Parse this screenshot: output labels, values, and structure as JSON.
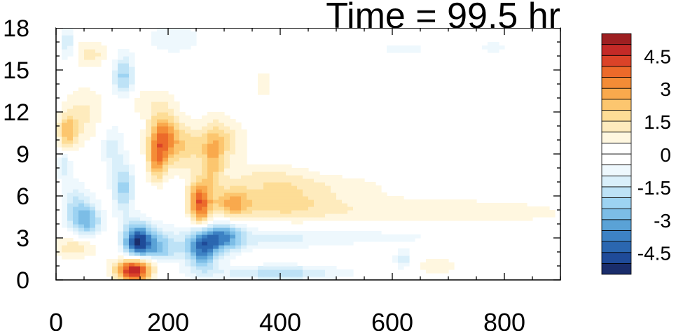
{
  "chart_data": {
    "type": "heatmap",
    "title": "Time = 99.5 hr",
    "xlabel": "",
    "ylabel": "",
    "xlim": [
      0,
      900
    ],
    "ylim": [
      0,
      18
    ],
    "x_ticks": [
      0,
      200,
      400,
      600,
      800
    ],
    "x_tick_labels": [
      "0",
      "200",
      "400",
      "600",
      "800"
    ],
    "y_ticks": [
      0,
      3,
      6,
      9,
      12,
      15,
      18
    ],
    "y_tick_labels": [
      "0",
      "3",
      "6",
      "9",
      "12",
      "15",
      "18"
    ],
    "colorbar": {
      "levels": [
        -5.5,
        -5,
        -4.5,
        -4,
        -3.5,
        -3,
        -2.5,
        -2,
        -1.5,
        -1,
        -0.5,
        0,
        0.5,
        1,
        1.5,
        2,
        2.5,
        3,
        3.5,
        4,
        4.5,
        5,
        5.5
      ],
      "colors": [
        "#1a2d6b",
        "#1f4b99",
        "#2b67b0",
        "#3d82c4",
        "#5aa2d6",
        "#7cbde6",
        "#9dd3f2",
        "#bde2f6",
        "#d9effa",
        "#eef8fd",
        "#ffffff",
        "#ffffff",
        "#fff7e0",
        "#feebbd",
        "#fddd96",
        "#fcc66f",
        "#f9a94d",
        "#f48c36",
        "#ec6a2a",
        "#db4328",
        "#c42a27",
        "#9e1f21"
      ],
      "tick_labels": [
        "4.5",
        "3",
        "1.5",
        "0",
        "-1.5",
        "-3",
        "-4.5"
      ],
      "tick_values": [
        4.5,
        3,
        1.5,
        0,
        -1.5,
        -3,
        -4.5
      ]
    },
    "field_features": [
      {
        "x": 140,
        "y": 0.6,
        "sx": 22,
        "sy": 0.6,
        "amp": 4.8
      },
      {
        "x": 165,
        "y": 1.2,
        "sx": 35,
        "sy": 0.5,
        "amp": 2.0
      },
      {
        "x": 145,
        "y": 2.8,
        "sx": 18,
        "sy": 0.9,
        "amp": -4.6
      },
      {
        "x": 185,
        "y": 2.0,
        "sx": 25,
        "sy": 1.1,
        "amp": -2.8
      },
      {
        "x": 260,
        "y": 2.5,
        "sx": 20,
        "sy": 1.2,
        "amp": -4.0
      },
      {
        "x": 300,
        "y": 3.1,
        "sx": 25,
        "sy": 0.8,
        "amp": -2.8
      },
      {
        "x": 255,
        "y": 5.8,
        "sx": 14,
        "sy": 1.0,
        "amp": 3.2
      },
      {
        "x": 260,
        "y": 4.2,
        "sx": 14,
        "sy": 0.9,
        "amp": 2.2
      },
      {
        "x": 315,
        "y": 5.5,
        "sx": 22,
        "sy": 0.8,
        "amp": 2.0
      },
      {
        "x": 280,
        "y": 8.5,
        "sx": 14,
        "sy": 1.6,
        "amp": 1.8
      },
      {
        "x": 190,
        "y": 10.3,
        "sx": 18,
        "sy": 1.2,
        "amp": 3.2
      },
      {
        "x": 180,
        "y": 8.4,
        "sx": 12,
        "sy": 1.0,
        "amp": 2.4
      },
      {
        "x": 230,
        "y": 9.5,
        "sx": 25,
        "sy": 1.2,
        "amp": 1.7
      },
      {
        "x": 300,
        "y": 10.0,
        "sx": 28,
        "sy": 1.2,
        "amp": 1.4
      },
      {
        "x": 20,
        "y": 10.5,
        "sx": 12,
        "sy": 1.0,
        "amp": 2.2
      },
      {
        "x": 50,
        "y": 11.8,
        "sx": 25,
        "sy": 1.5,
        "amp": 1.1
      },
      {
        "x": 35,
        "y": 5.0,
        "sx": 18,
        "sy": 1.3,
        "amp": -1.8
      },
      {
        "x": 60,
        "y": 4.2,
        "sx": 16,
        "sy": 0.9,
        "amp": -2.2
      },
      {
        "x": 120,
        "y": 6.5,
        "sx": 14,
        "sy": 1.3,
        "amp": -2.2
      },
      {
        "x": 35,
        "y": 2.4,
        "sx": 28,
        "sy": 0.6,
        "amp": 1.6
      },
      {
        "x": 15,
        "y": 8.3,
        "sx": 10,
        "sy": 0.8,
        "amp": -1.5
      },
      {
        "x": 120,
        "y": 14.5,
        "sx": 14,
        "sy": 1.2,
        "amp": -2.2
      },
      {
        "x": 20,
        "y": 16.8,
        "sx": 10,
        "sy": 1.0,
        "amp": -1.5
      },
      {
        "x": 60,
        "y": 16.2,
        "sx": 25,
        "sy": 0.7,
        "amp": 1.2
      },
      {
        "x": 210,
        "y": 17.2,
        "sx": 40,
        "sy": 0.8,
        "amp": -0.9
      },
      {
        "x": 160,
        "y": 12.8,
        "sx": 40,
        "sy": 0.8,
        "amp": 0.8
      },
      {
        "x": 100,
        "y": 9.5,
        "sx": 15,
        "sy": 1.2,
        "amp": -1.2
      },
      {
        "x": 400,
        "y": 5.5,
        "sx": 70,
        "sy": 0.9,
        "amp": 1.3
      },
      {
        "x": 560,
        "y": 5.0,
        "sx": 180,
        "sy": 0.8,
        "amp": 0.7
      },
      {
        "x": 780,
        "y": 4.8,
        "sx": 130,
        "sy": 0.6,
        "amp": 0.55
      },
      {
        "x": 380,
        "y": 7.3,
        "sx": 55,
        "sy": 0.8,
        "amp": 1.0
      },
      {
        "x": 500,
        "y": 6.8,
        "sx": 90,
        "sy": 0.6,
        "amp": 0.6
      },
      {
        "x": 380,
        "y": 3.0,
        "sx": 70,
        "sy": 0.6,
        "amp": -0.9
      },
      {
        "x": 560,
        "y": 3.1,
        "sx": 130,
        "sy": 0.5,
        "amp": -0.7
      },
      {
        "x": 400,
        "y": 0.5,
        "sx": 80,
        "sy": 0.4,
        "amp": -1.8
      },
      {
        "x": 620,
        "y": 1.5,
        "sx": 12,
        "sy": 0.5,
        "amp": -1.2
      },
      {
        "x": 680,
        "y": 1.0,
        "sx": 25,
        "sy": 0.4,
        "amp": 1.0
      },
      {
        "x": 620,
        "y": 16.5,
        "sx": 50,
        "sy": 0.5,
        "amp": -0.6
      },
      {
        "x": 780,
        "y": 16.6,
        "sx": 30,
        "sy": 0.5,
        "amp": -0.6
      },
      {
        "x": 370,
        "y": 14.0,
        "sx": 10,
        "sy": 0.8,
        "amp": 0.8
      }
    ]
  }
}
